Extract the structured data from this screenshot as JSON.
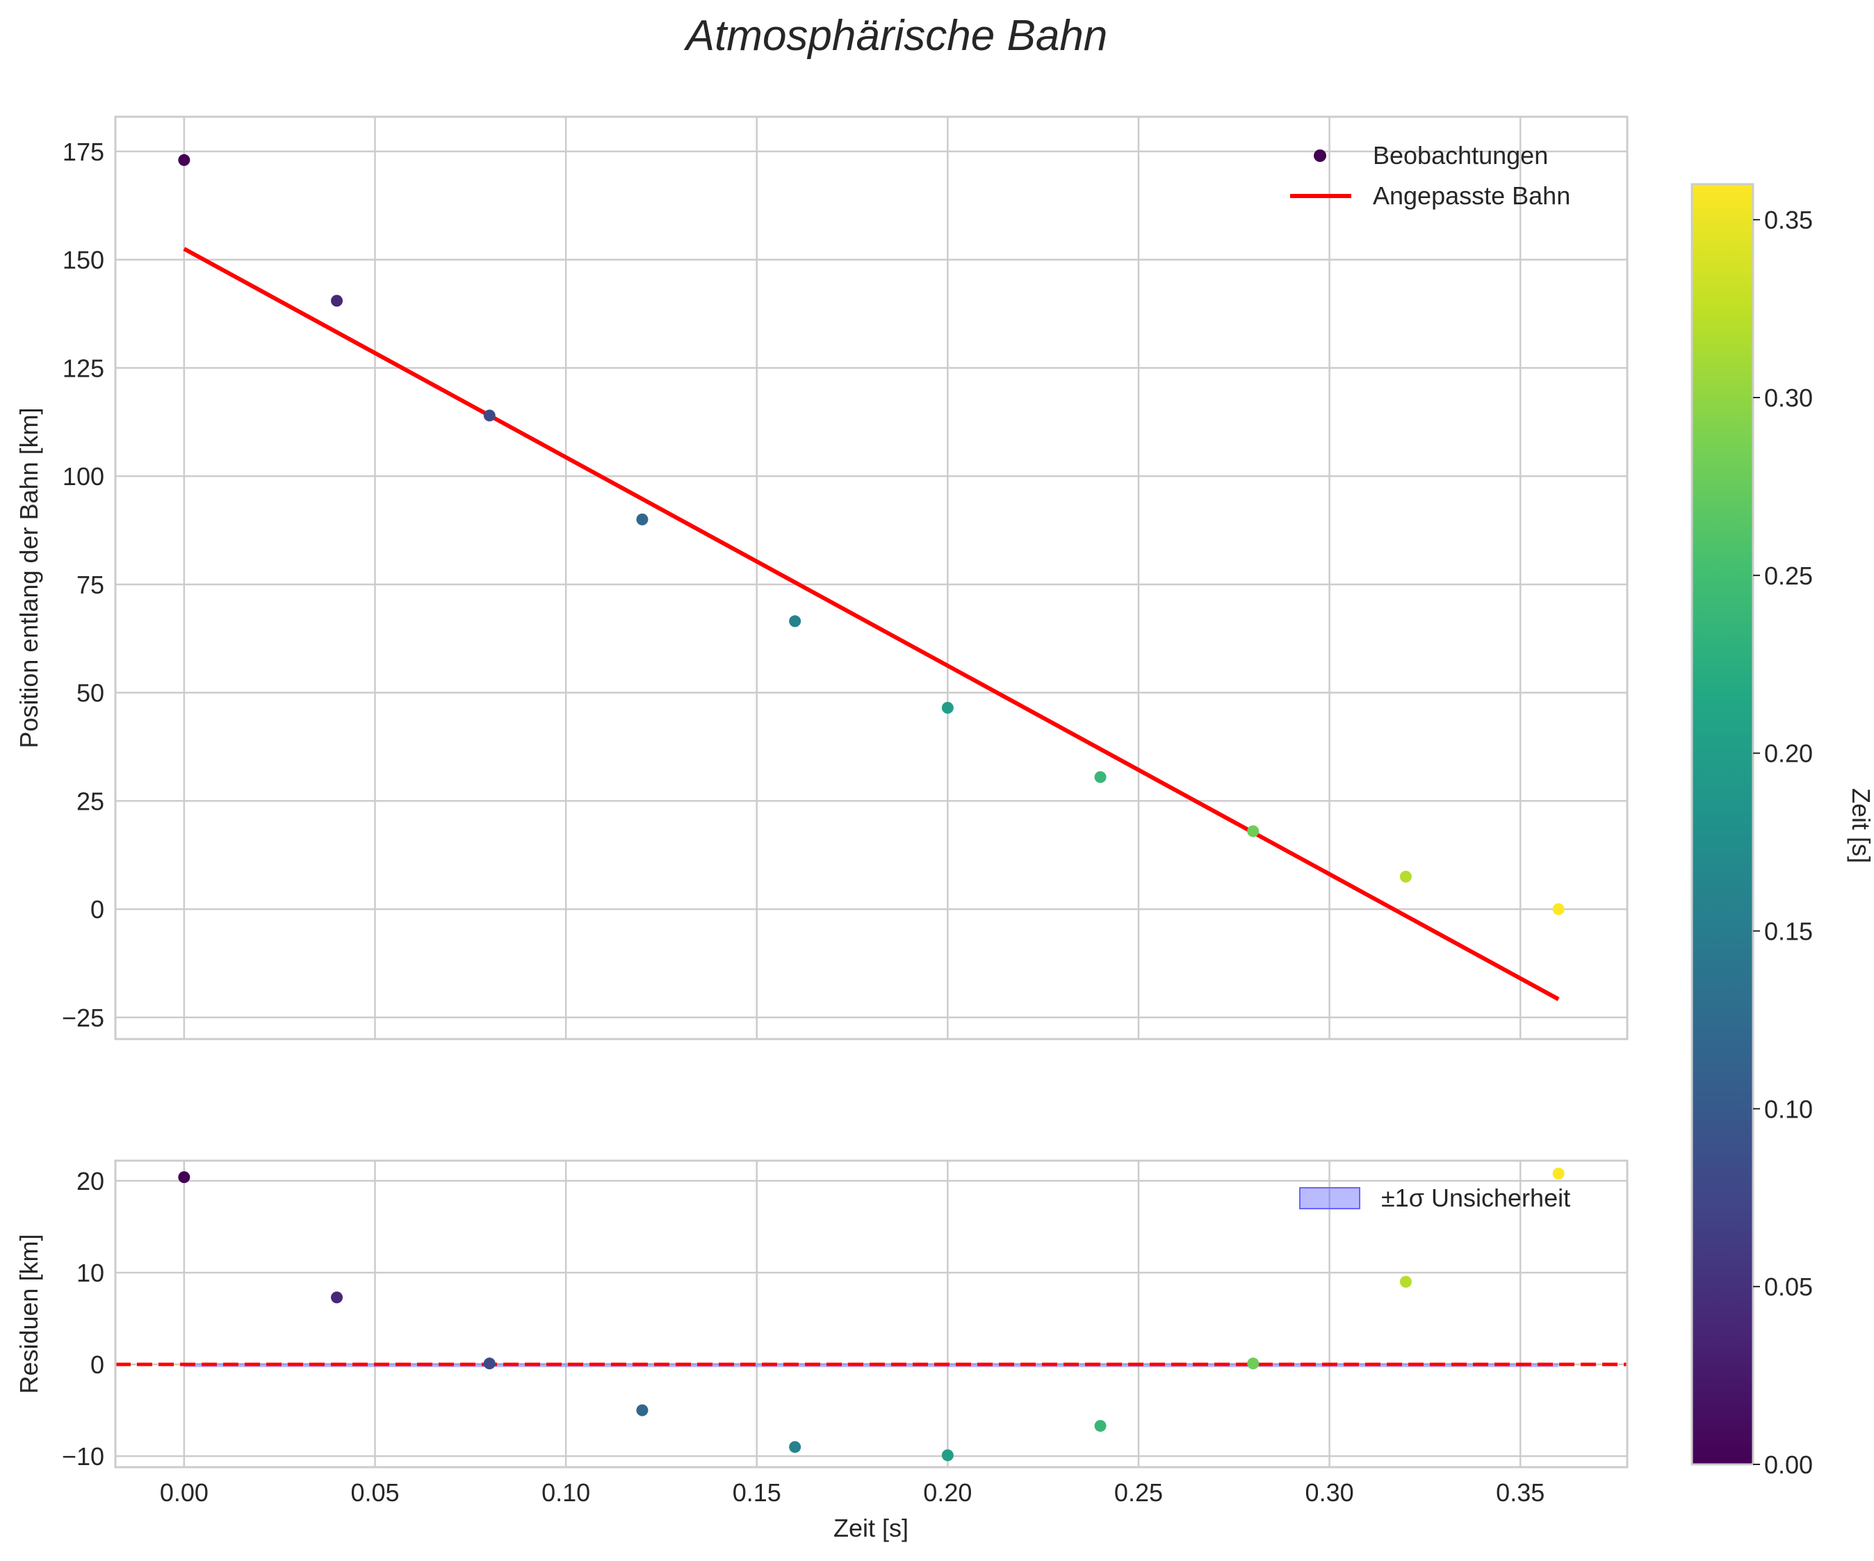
{
  "title": "Atmosphärische Bahn",
  "colorbar": {
    "label": "Zeit [s]",
    "min": 0.0,
    "max": 0.36,
    "ticks": [
      "0.00",
      "0.05",
      "0.10",
      "0.15",
      "0.20",
      "0.25",
      "0.30",
      "0.35"
    ],
    "tick_values": [
      0,
      0.05,
      0.1,
      0.15,
      0.2,
      0.25,
      0.3,
      0.35
    ]
  },
  "colors": {
    "fit_line": "#ff0000",
    "zero_line": "#ff0000",
    "band": "#6666ff",
    "grid": "#cccccc"
  },
  "chart_data": [
    {
      "type": "scatter",
      "panel": "top",
      "ylabel": "Position entlang der Bahn [km]",
      "xlim": [
        -0.018,
        0.378
      ],
      "ylim": [
        -30,
        183
      ],
      "yticks": [
        -25,
        0,
        25,
        50,
        75,
        100,
        125,
        150,
        175
      ],
      "ytick_labels": [
        "−25",
        "0",
        "25",
        "50",
        "75",
        "100",
        "125",
        "150",
        "175"
      ],
      "series": [
        {
          "name": "Beobachtungen",
          "x": [
            0.0,
            0.04,
            0.08,
            0.12,
            0.16,
            0.2,
            0.24,
            0.28,
            0.32,
            0.36
          ],
          "y": [
            173,
            140.5,
            114,
            90,
            66.5,
            46.5,
            30.5,
            18,
            7.5,
            0
          ]
        },
        {
          "name": "Angepasste Bahn",
          "type": "line",
          "x": [
            0.0,
            0.36
          ],
          "y": [
            152.5,
            -20.8
          ]
        }
      ],
      "legend": {
        "placement": "top-right",
        "entries": [
          "Beobachtungen",
          "Angepasste Bahn"
        ]
      }
    },
    {
      "type": "scatter",
      "panel": "bottom",
      "xlabel": "Zeit [s]",
      "ylabel": "Residuen [km]",
      "xlim": [
        -0.018,
        0.378
      ],
      "ylim": [
        -11.2,
        22.2
      ],
      "xticks": [
        0.0,
        0.05,
        0.1,
        0.15,
        0.2,
        0.25,
        0.3,
        0.35
      ],
      "xtick_labels": [
        "0.00",
        "0.05",
        "0.10",
        "0.15",
        "0.20",
        "0.25",
        "0.30",
        "0.35"
      ],
      "yticks": [
        -10,
        0,
        10,
        20
      ],
      "ytick_labels": [
        "−10",
        "0",
        "10",
        "20"
      ],
      "series": [
        {
          "name": "Residuen",
          "x": [
            0.0,
            0.04,
            0.08,
            0.12,
            0.16,
            0.2,
            0.24,
            0.28,
            0.32,
            0.36
          ],
          "y": [
            20.4,
            7.3,
            0.1,
            -5.0,
            -9.0,
            -9.9,
            -6.7,
            0.1,
            9.0,
            20.8
          ]
        },
        {
          "name": "±1σ Unsicherheit",
          "type": "band",
          "x": [
            0.0,
            0.36
          ],
          "lower": -0.15,
          "upper": 0.15
        }
      ],
      "zero_line": 0,
      "legend": {
        "placement": "top-right",
        "entries": [
          "±1σ Unsicherheit"
        ]
      }
    }
  ]
}
